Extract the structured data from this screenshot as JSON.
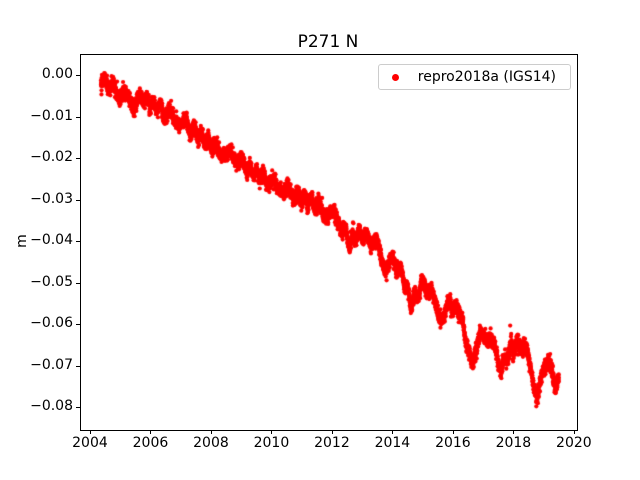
{
  "figure": {
    "background": "#ffffff",
    "text_color": "#000000"
  },
  "chart_data": {
    "type": "scatter",
    "title": "P271 N",
    "xlabel": "",
    "ylabel": "m",
    "grid": false,
    "xlim": [
      2003.67,
      2020.07
    ],
    "ylim": [
      -0.0853,
      0.00506
    ],
    "xticks": {
      "values": [
        2004,
        2006,
        2008,
        2010,
        2012,
        2014,
        2016,
        2018,
        2020
      ],
      "labels": [
        "2004",
        "2006",
        "2008",
        "2010",
        "2012",
        "2014",
        "2016",
        "2018",
        "2020"
      ]
    },
    "yticks": {
      "values": [
        0.0,
        -0.01,
        -0.02,
        -0.03,
        -0.04,
        -0.05,
        -0.06,
        -0.07,
        -0.08
      ],
      "labels": [
        "0.00",
        "−0.01",
        "−0.02",
        "−0.03",
        "−0.04",
        "−0.05",
        "−0.06",
        "−0.07",
        "−0.08"
      ]
    },
    "legend": {
      "position": "upper right",
      "entries": [
        {
          "label": "repro2018a (IGS14)",
          "color": "#ff0000",
          "marker": "dot"
        }
      ]
    },
    "series": [
      {
        "name": "repro2018a (IGS14)",
        "color": "#ff0000",
        "marker": ".",
        "marker_radius_px": 2.1,
        "t_start": 2004.33,
        "t_end": 2019.47,
        "samples_per_year": 360,
        "noise_sigma": 0.00085,
        "wiggle_amp": 0.0011,
        "wiggle_period": 0.31,
        "outlier_chance": 0.004,
        "outlier_amp": 0.0028,
        "seed": 42,
        "trend": [
          [
            2004.33,
            -0.0005
          ],
          [
            2004.6,
            -0.0022
          ],
          [
            2004.9,
            -0.004
          ],
          [
            2005.15,
            -0.0052
          ],
          [
            2005.45,
            -0.0068
          ],
          [
            2005.7,
            -0.0052
          ],
          [
            2005.95,
            -0.0068
          ],
          [
            2006.2,
            -0.0073
          ],
          [
            2006.45,
            -0.009
          ],
          [
            2006.7,
            -0.0101
          ],
          [
            2007.0,
            -0.0112
          ],
          [
            2007.3,
            -0.0125
          ],
          [
            2007.55,
            -0.014
          ],
          [
            2007.9,
            -0.0163
          ],
          [
            2008.2,
            -0.0178
          ],
          [
            2008.5,
            -0.019
          ],
          [
            2008.9,
            -0.0202
          ],
          [
            2009.3,
            -0.0228
          ],
          [
            2009.8,
            -0.0252
          ],
          [
            2010.3,
            -0.027
          ],
          [
            2010.75,
            -0.0288
          ],
          [
            2011.3,
            -0.0305
          ],
          [
            2011.75,
            -0.033
          ],
          [
            2012.05,
            -0.0338
          ],
          [
            2012.3,
            -0.0362
          ],
          [
            2012.55,
            -0.0405
          ],
          [
            2012.8,
            -0.0378
          ],
          [
            2013.15,
            -0.0388
          ],
          [
            2013.5,
            -0.0415
          ],
          [
            2013.72,
            -0.046
          ],
          [
            2014.0,
            -0.0448
          ],
          [
            2014.3,
            -0.048
          ],
          [
            2014.6,
            -0.055
          ],
          [
            2014.95,
            -0.0505
          ],
          [
            2015.25,
            -0.0512
          ],
          [
            2015.5,
            -0.059
          ],
          [
            2015.85,
            -0.0548
          ],
          [
            2016.2,
            -0.0565
          ],
          [
            2016.55,
            -0.069
          ],
          [
            2016.9,
            -0.0628
          ],
          [
            2017.2,
            -0.0628
          ],
          [
            2017.55,
            -0.0705
          ],
          [
            2017.9,
            -0.0655
          ],
          [
            2018.2,
            -0.0648
          ],
          [
            2018.5,
            -0.068
          ],
          [
            2018.75,
            -0.0785
          ],
          [
            2019.0,
            -0.0698
          ],
          [
            2019.12,
            -0.068
          ],
          [
            2019.3,
            -0.0738
          ],
          [
            2019.47,
            -0.0742
          ]
        ]
      }
    ]
  }
}
